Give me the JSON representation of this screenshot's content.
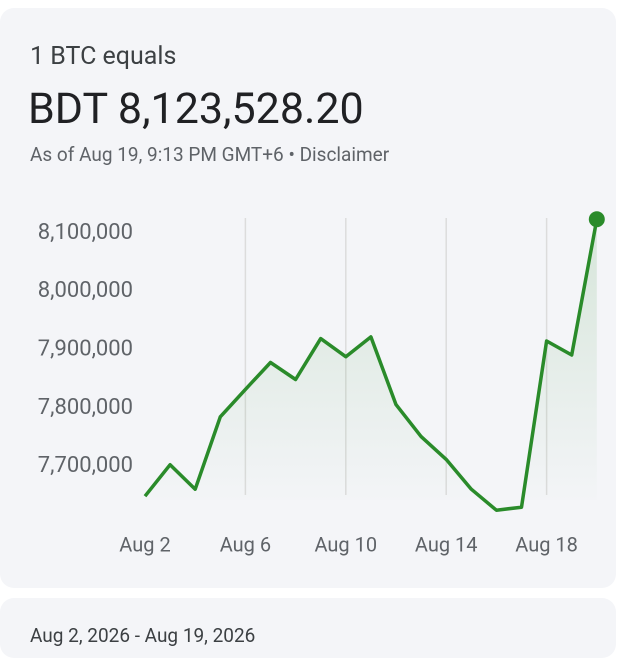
{
  "header": {
    "title": "1 BTC equals",
    "price": "BDT 8,123,528.20",
    "as_of": "As of Aug 19, 9:13 PM GMT+6",
    "separator": "•",
    "disclaimer": "Disclaimer"
  },
  "chart_data": {
    "type": "line",
    "categories": [
      "Aug 2",
      null,
      null,
      null,
      "Aug 6",
      null,
      null,
      null,
      "Aug 10",
      null,
      null,
      null,
      "Aug 14",
      null,
      null,
      null,
      "Aug 18",
      null,
      null
    ],
    "values": [
      7649000,
      7703000,
      7661000,
      7785000,
      7832000,
      7878000,
      7849000,
      7919000,
      7888000,
      7922000,
      7806000,
      7751000,
      7712000,
      7661000,
      7625000,
      7630000,
      7915000,
      7891000,
      8123528.2
    ],
    "color": "#2a8b2a",
    "ylim": [
      7615000,
      8130000
    ],
    "yticks": [
      {
        "value": 7700000,
        "label": "7,700,000"
      },
      {
        "value": 7800000,
        "label": "7,800,000"
      },
      {
        "value": 7900000,
        "label": "7,900,000"
      },
      {
        "value": 8000000,
        "label": "8,000,000"
      },
      {
        "value": 8100000,
        "label": "8,100,000"
      }
    ],
    "grid": true
  },
  "footer": {
    "range": "Aug 2, 2026 - Aug 19, 2026"
  }
}
